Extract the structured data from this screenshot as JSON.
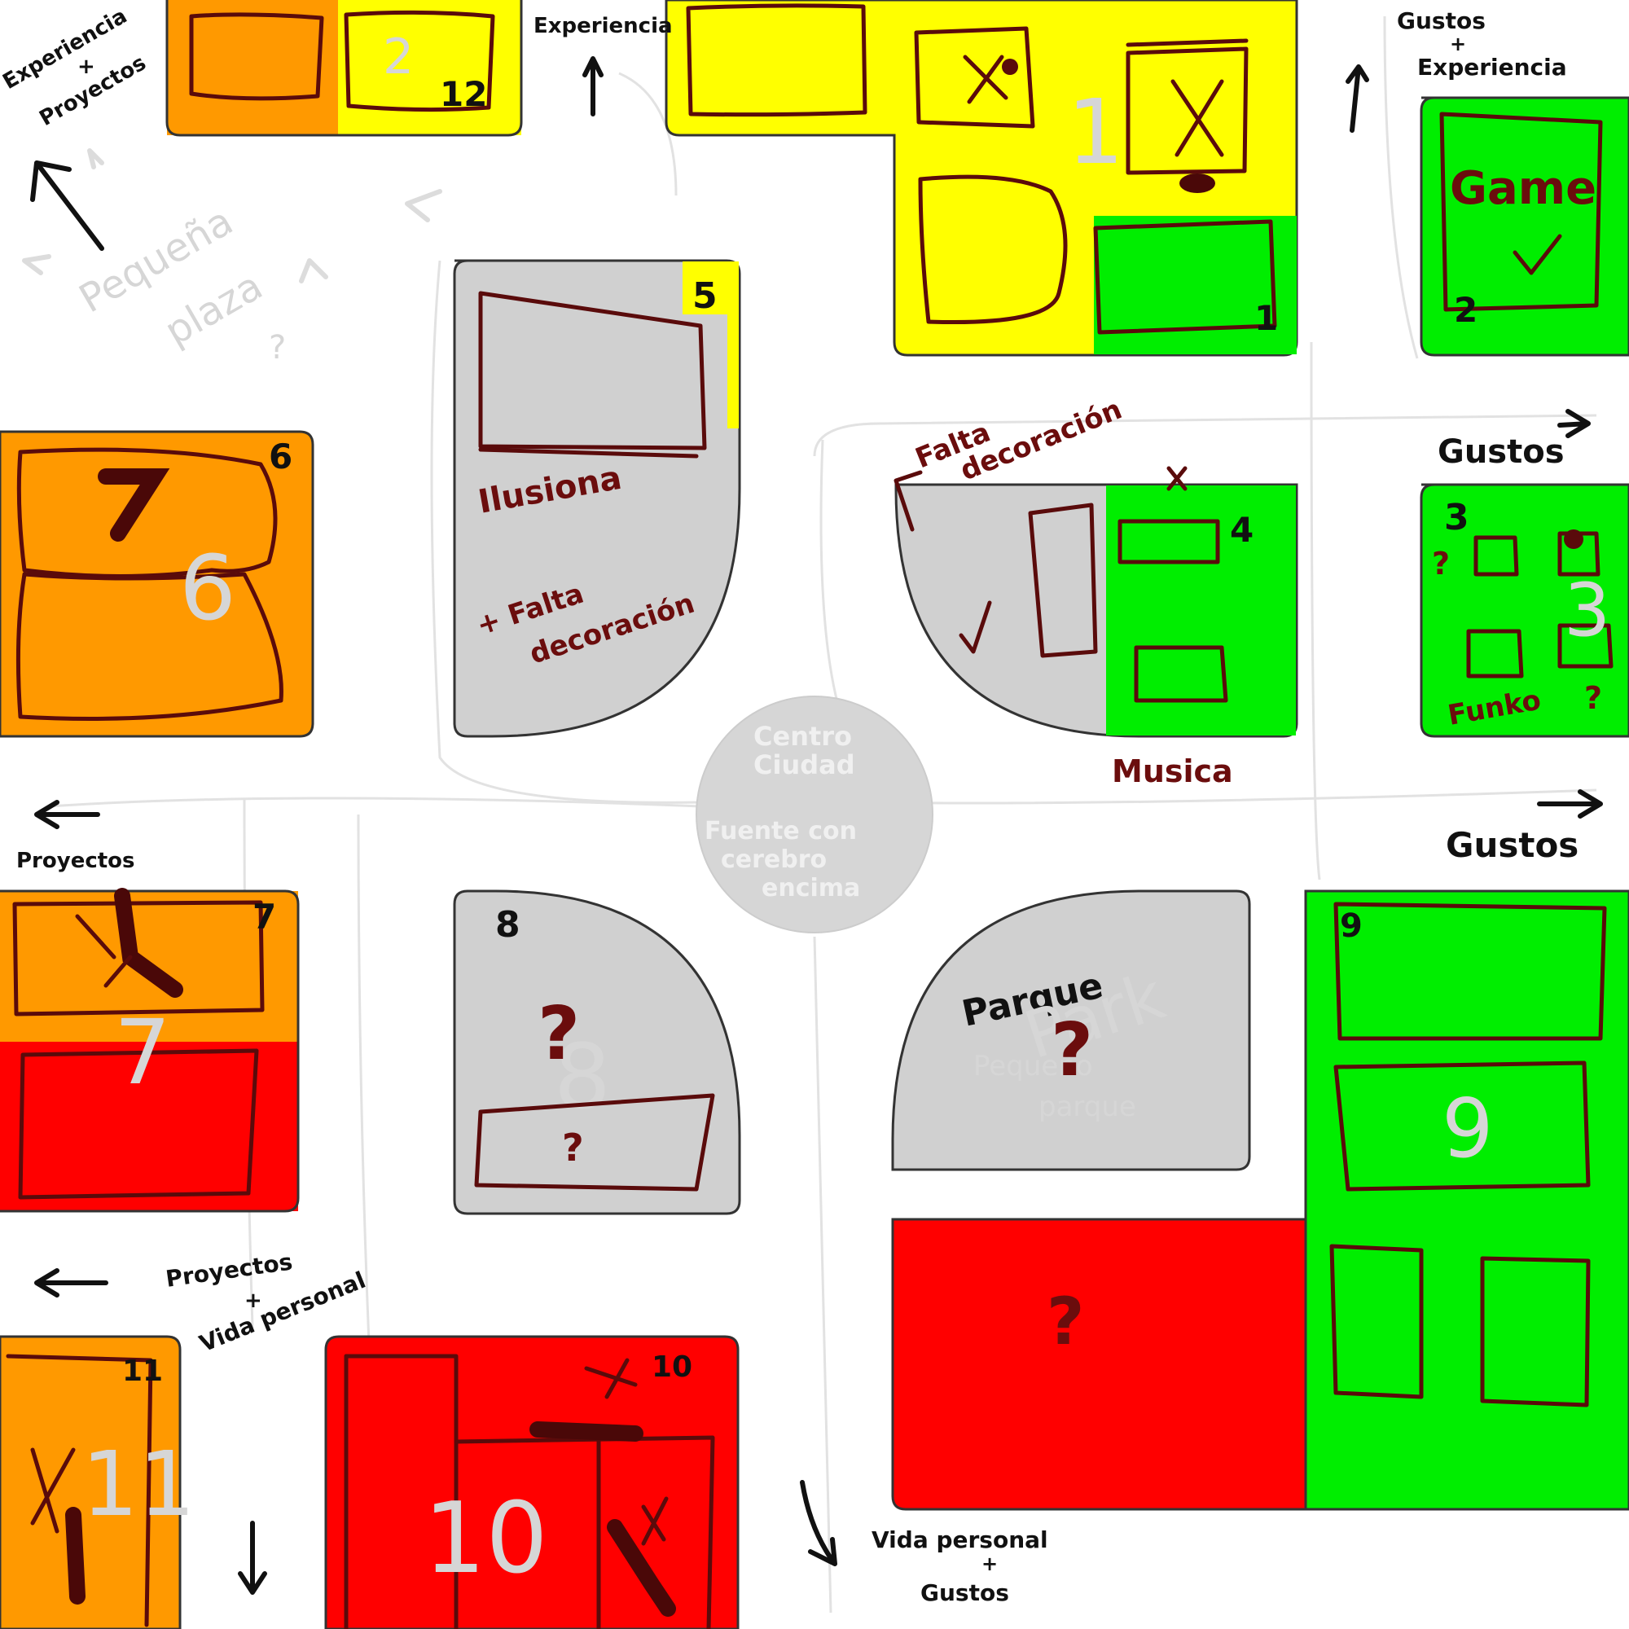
{
  "colors": {
    "orange": "#ff9900",
    "yellow": "#ffff00",
    "green": "#00ee00",
    "red": "#ff0000",
    "gray": "#d0d0d0",
    "ink": "#5a0b0b"
  },
  "blocks": {
    "b1_num": "1",
    "b2_num": "2",
    "b3_num": "3",
    "b4_num": "4",
    "b5_num": "5",
    "b6_num": "6",
    "b7_num": "7",
    "b8_num": "8",
    "b9_num": "9",
    "b10_num": "10",
    "b11_num": "11",
    "b12_num": "12"
  },
  "labels": {
    "top_left_l1": "Experiencia",
    "top_left_l2": "+",
    "top_left_l3": "Proyectos",
    "top_center": "Experiencia",
    "top_right_l1": "Gustos",
    "top_right_l2": "+",
    "top_right_l3": "Experiencia",
    "right_upper": "Gustos",
    "right_lower": "Gustos",
    "left_mid": "Proyectos",
    "bottom_left_l1": "Proyectos",
    "bottom_left_l2": "+",
    "bottom_left_l3": "Vida personal",
    "bottom_right_l1": "Vida personal",
    "bottom_right_l2": "+",
    "bottom_right_l3": "Gustos",
    "plaza_l1": "Pequeña",
    "plaza_l2": "plaza",
    "plaza_l3": "?",
    "center_l1": "Centro",
    "center_l2": "Ciudad",
    "center_l3": "Fuente con",
    "center_l4": "cerebro",
    "center_l5": "encima",
    "ilusiona": "Ilusiona",
    "falta_5_l1": "+ Falta",
    "falta_5_l2": "decoración",
    "falta_4_l1": "Falta",
    "falta_4_l2": "decoración",
    "musica": "Musica",
    "game": "Game",
    "funko": "Funko",
    "parque": "Parque",
    "park": "Park",
    "pequeno_l1": "Pequeño",
    "pequeno_l2": "parque",
    "question": "?"
  }
}
